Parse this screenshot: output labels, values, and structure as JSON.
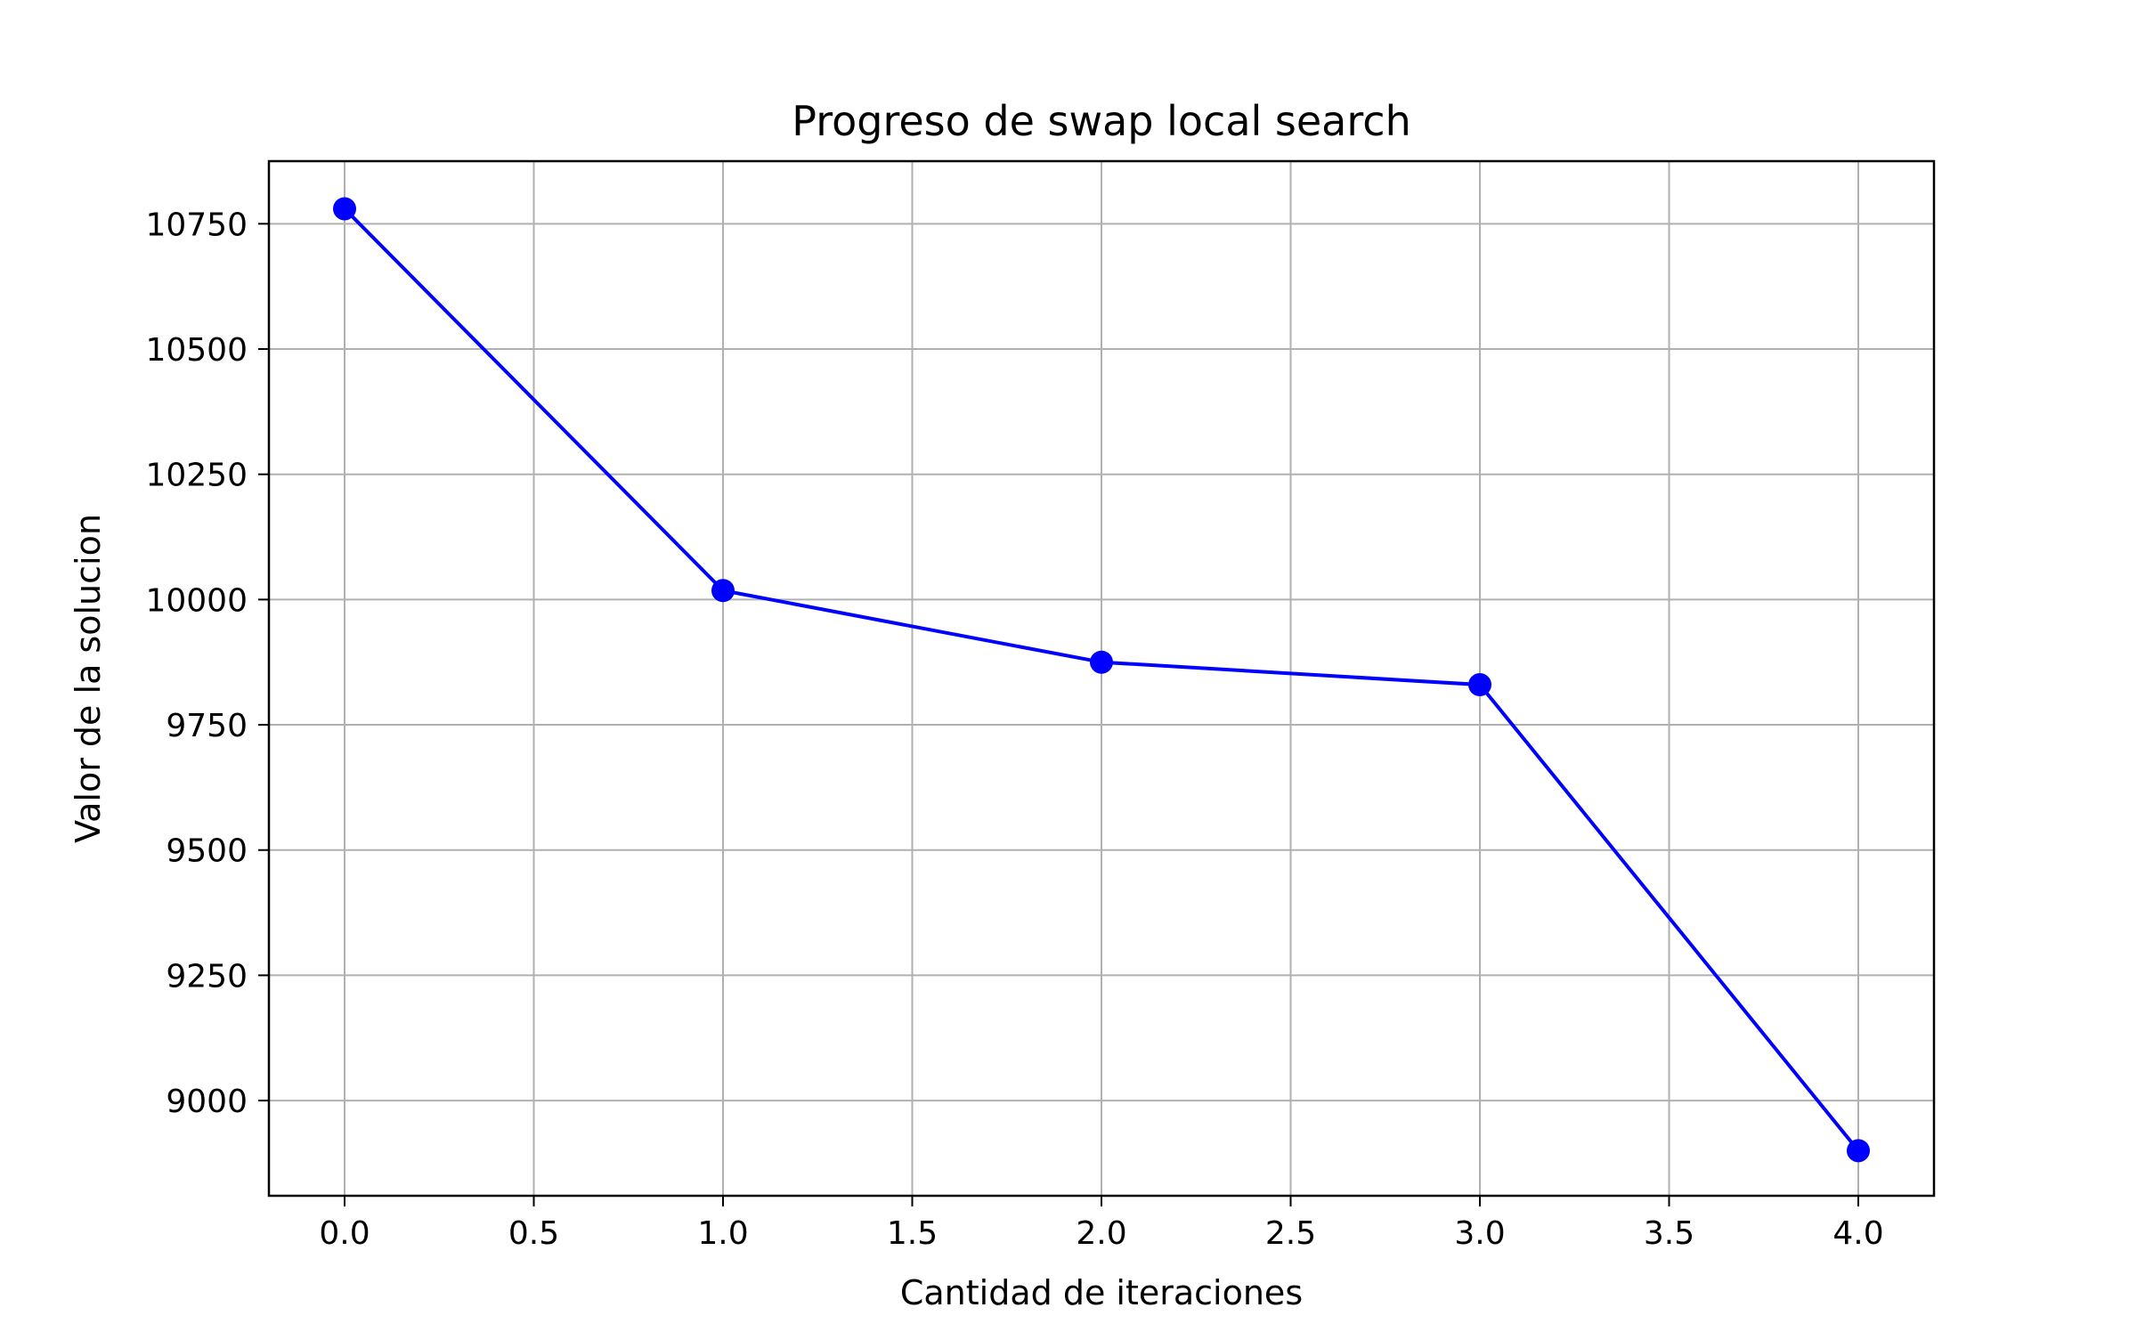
{
  "chart_data": {
    "type": "line",
    "title": "Progreso de swap local search",
    "xlabel": "Cantidad de iteraciones",
    "ylabel": "Valor de la solucion",
    "x": [
      0,
      1,
      2,
      3,
      4
    ],
    "series": [
      {
        "values": [
          10780,
          10018,
          9875,
          9830,
          8900
        ],
        "color": "#0000ff",
        "marker": "circle"
      }
    ],
    "xlim": [
      -0.2,
      4.2
    ],
    "ylim": [
      8810,
      10875
    ],
    "xticks": [
      0.0,
      0.5,
      1.0,
      1.5,
      2.0,
      2.5,
      3.0,
      3.5,
      4.0
    ],
    "xtick_labels": [
      "0.0",
      "0.5",
      "1.0",
      "1.5",
      "2.0",
      "2.5",
      "3.0",
      "3.5",
      "4.0"
    ],
    "yticks": [
      9000,
      9250,
      9500,
      9750,
      10000,
      10250,
      10500,
      10750
    ],
    "ytick_labels": [
      "9000",
      "9250",
      "9500",
      "9750",
      "10000",
      "10250",
      "10500",
      "10750"
    ],
    "grid": true,
    "legend": "none"
  }
}
